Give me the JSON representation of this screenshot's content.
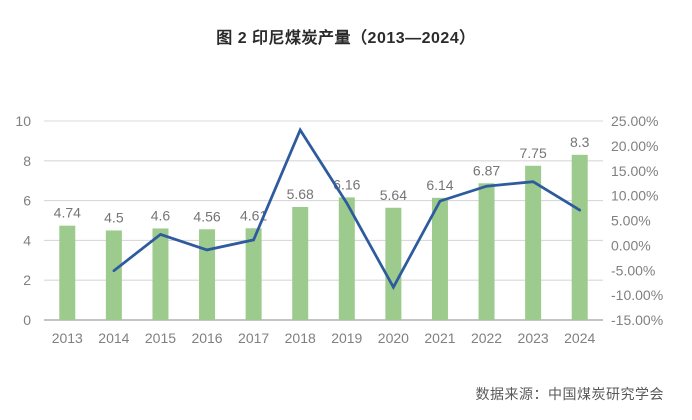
{
  "title": "图 2 印尼煤炭产量（2013—2024）",
  "source": "数据来源：中国煤炭研究学会",
  "colors": {
    "background": "#ffffff",
    "bar": "#9dcb8d",
    "line": "#2e5b9e",
    "grid": "#d9d9d9",
    "axis_line": "#b0b0b0",
    "tick_label": "#808080",
    "data_label": "#757575",
    "title": "#2b2b2b",
    "source": "#595959"
  },
  "chart_data": {
    "type": "combo (bar + line, dual axis)",
    "title": "图 2 印尼煤炭产量（2013—2024）",
    "categories": [
      "2013",
      "2014",
      "2015",
      "2016",
      "2017",
      "2018",
      "2019",
      "2020",
      "2021",
      "2022",
      "2023",
      "2024"
    ],
    "series": [
      {
        "type": "bar",
        "axis": "left",
        "values": [
          4.74,
          4.5,
          4.6,
          4.56,
          4.61,
          5.68,
          6.16,
          5.64,
          6.14,
          6.87,
          7.75,
          8.3
        ],
        "data_labels": [
          "4.74",
          "4.5",
          "4.6",
          "4.56",
          "4.61",
          "5.68",
          "6.16",
          "5.64",
          "6.14",
          "6.87",
          "7.75",
          "8.3"
        ]
      },
      {
        "type": "line",
        "axis": "right",
        "values": [
          null,
          -5.1,
          2.2,
          -0.9,
          1.1,
          23.2,
          8.5,
          -8.4,
          8.9,
          11.9,
          12.8,
          7.1
        ]
      }
    ],
    "left_axis": {
      "min": 0,
      "max": 10,
      "tick_step": 2,
      "ticks": [
        "0",
        "2",
        "4",
        "6",
        "8",
        "10"
      ]
    },
    "right_axis": {
      "min": -15,
      "max": 25,
      "tick_step": 5,
      "ticks": [
        "25.00%",
        "20.00%",
        "15.00%",
        "10.00%",
        "5.00%",
        "0.00%",
        "-5.00%",
        "-10.00%",
        "-15.00%"
      ]
    },
    "grid": "horizontal gridlines at left-axis ticks",
    "legend": "none"
  }
}
